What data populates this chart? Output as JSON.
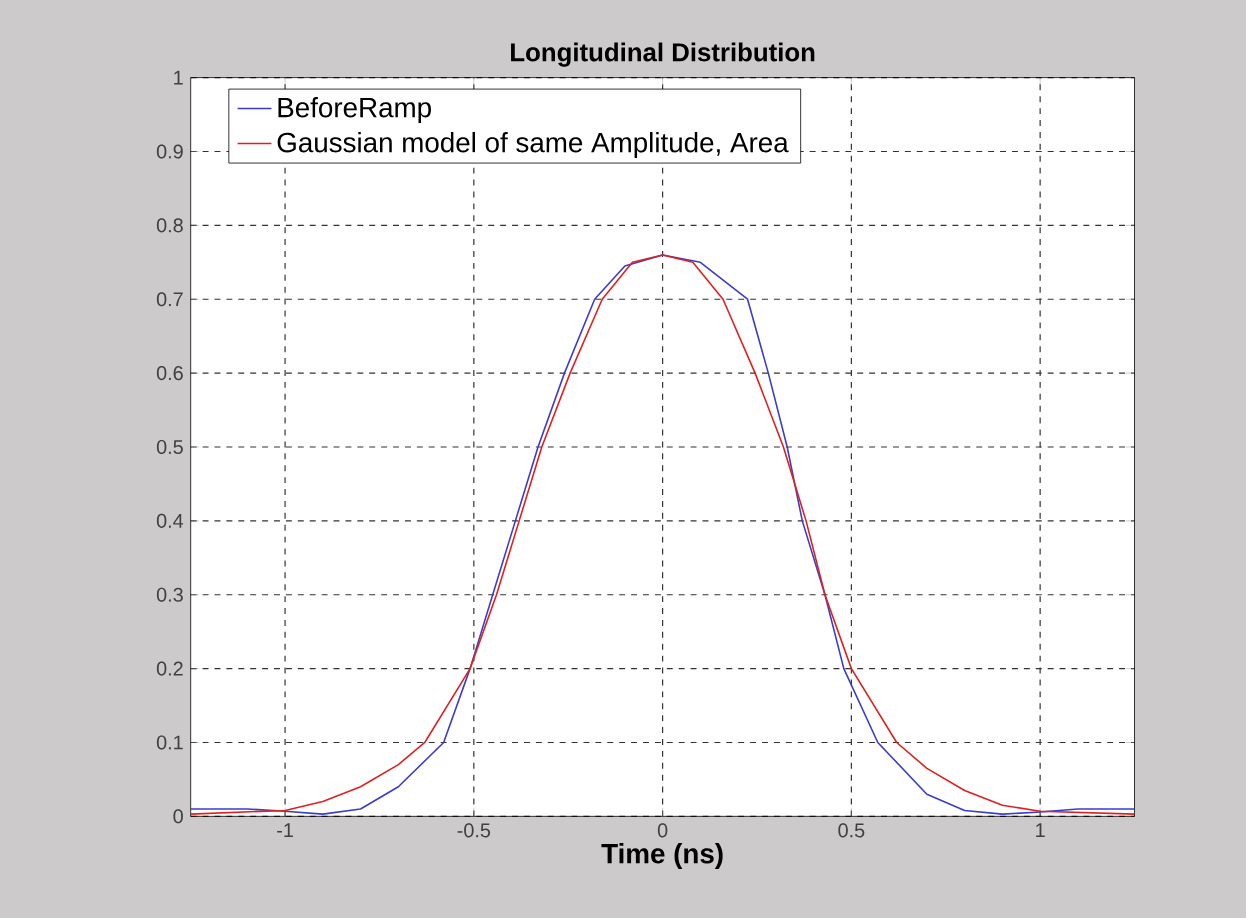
{
  "chart_data": {
    "type": "line",
    "title": "Longitudinal Distribution",
    "xlabel": "Time (ns)",
    "xlim": [
      -1.25,
      1.25
    ],
    "ylim": [
      0,
      1
    ],
    "xticks": [
      -1,
      -0.5,
      0,
      0.5,
      1
    ],
    "yticks": [
      0,
      0.1,
      0.2,
      0.3,
      0.4,
      0.5,
      0.6,
      0.7,
      0.8,
      0.9,
      1
    ],
    "grid": true,
    "legend": "top",
    "marker": "none",
    "line_style": "solid",
    "series": [
      {
        "name": "BeforeRamp",
        "color": "#3b3bd0",
        "x": [
          -1.25,
          -1.1,
          -1.0,
          -0.9,
          -0.8,
          -0.7,
          -0.58,
          -0.51,
          -0.45,
          -0.39,
          -0.33,
          -0.26,
          -0.18,
          -0.1,
          0,
          0.1,
          0.225,
          0.28,
          0.33,
          0.37,
          0.43,
          0.48,
          0.57,
          0.7,
          0.8,
          0.9,
          1.0,
          1.1,
          1.25
        ],
        "values": [
          0.01,
          0.01,
          0.007,
          0.003,
          0.01,
          0.04,
          0.1,
          0.2,
          0.3,
          0.4,
          0.5,
          0.6,
          0.7,
          0.745,
          0.76,
          0.75,
          0.7,
          0.6,
          0.5,
          0.4,
          0.3,
          0.2,
          0.1,
          0.03,
          0.008,
          0.003,
          0.006,
          0.01,
          0.01
        ]
      },
      {
        "name": "Gaussian model of same Amplitude, Area",
        "color": "#e02020",
        "x": [
          -1.25,
          -1.0,
          -0.9,
          -0.8,
          -0.7,
          -0.63,
          -0.51,
          -0.44,
          -0.38,
          -0.32,
          -0.245,
          -0.16,
          -0.08,
          0,
          0.08,
          0.16,
          0.245,
          0.32,
          0.38,
          0.43,
          0.5,
          0.62,
          0.7,
          0.8,
          0.9,
          1.0,
          1.25
        ],
        "values": [
          0.003,
          0.008,
          0.02,
          0.04,
          0.07,
          0.1,
          0.2,
          0.3,
          0.4,
          0.5,
          0.6,
          0.7,
          0.75,
          0.76,
          0.75,
          0.7,
          0.6,
          0.5,
          0.4,
          0.3,
          0.2,
          0.1,
          0.065,
          0.035,
          0.015,
          0.007,
          0.003
        ]
      }
    ]
  }
}
